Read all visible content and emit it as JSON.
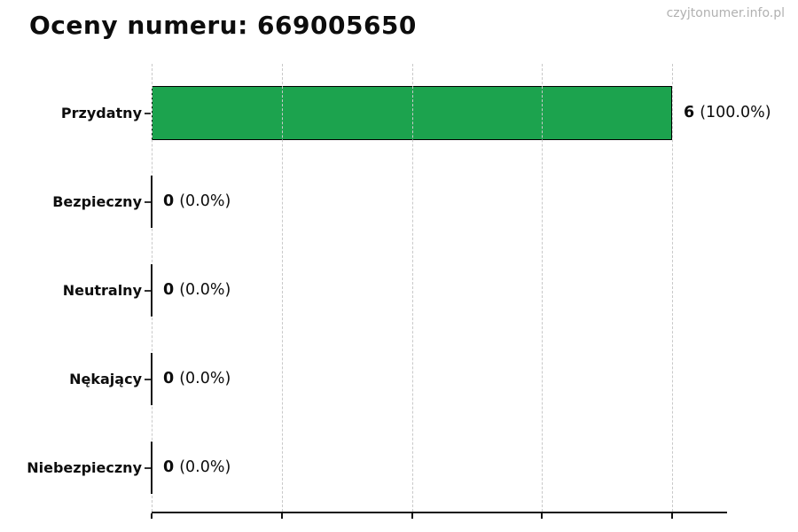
{
  "header": {
    "title": "Oceny numeru: 669005650",
    "watermark": "czyjtonumer.info.pl"
  },
  "chart_data": {
    "type": "bar",
    "orientation": "horizontal",
    "title": "Oceny numeru: 669005650",
    "categories": [
      "Przydatny",
      "Bezpieczny",
      "Neutralny",
      "Nękający",
      "Niebezpieczny"
    ],
    "values": [
      6,
      0,
      0,
      0,
      0
    ],
    "counts": [
      "6",
      "0",
      "0",
      "0",
      "0"
    ],
    "percents": [
      "(100.0%)",
      "(0.0%)",
      "(0.0%)",
      "(0.0%)",
      "(0.0%)"
    ],
    "xlabel": "",
    "ylabel": "",
    "xlim": [
      0,
      6.63
    ],
    "xticks": [
      0,
      1.5,
      3,
      4.5,
      6
    ],
    "xtick_labels_visible": false,
    "grid": true,
    "grid_style": "dashed",
    "grid_color": "#c9c9c9",
    "legend": "none",
    "bar_color": "#1ca34e",
    "bar_edge_color": "#000000",
    "axis_color": "#111111",
    "title_color": "#0d0d0d",
    "watermark_color": "#b1b1b1"
  }
}
